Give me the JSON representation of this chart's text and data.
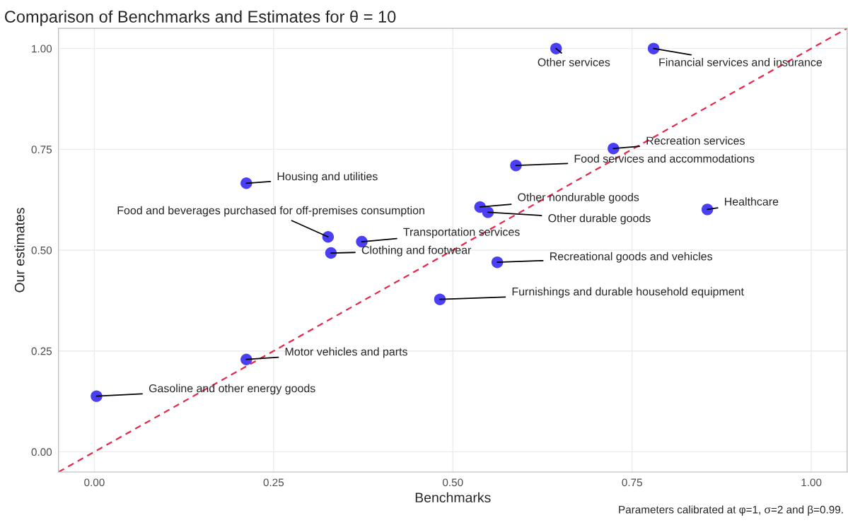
{
  "chart_data": {
    "type": "scatter",
    "title": "Comparison of Benchmarks and Estimates for θ = 10",
    "xlabel": "Benchmarks",
    "ylabel": "Our estimates",
    "series": [
      {
        "color": "#4b3ff5",
        "marker": "circle",
        "x": [
          0.003,
          0.212,
          0.212,
          0.326,
          0.33,
          0.373,
          0.482,
          0.538,
          0.549,
          0.562,
          0.588,
          0.644,
          0.724,
          0.78,
          0.855
        ],
        "values": [
          0.138,
          0.229,
          0.666,
          0.533,
          0.493,
          0.521,
          0.378,
          0.607,
          0.594,
          0.47,
          0.71,
          1.0,
          0.752,
          1.0,
          0.601
        ]
      },
      {
        "type": "line",
        "color": "#e8274b",
        "line_style": "dashed",
        "x": [
          -0.05,
          1.05
        ],
        "values": [
          -0.05,
          1.05
        ]
      }
    ],
    "annotations": [
      {
        "text": "Gasoline and other energy goods",
        "x": 0.003,
        "y": 0.138
      },
      {
        "text": "Motor vehicles and parts",
        "x": 0.212,
        "y": 0.229
      },
      {
        "text": "Housing and utilities",
        "x": 0.212,
        "y": 0.666
      },
      {
        "text": "Food and beverages purchased for off-premises consumption",
        "x": 0.326,
        "y": 0.533
      },
      {
        "text": "Clothing and footwear",
        "x": 0.33,
        "y": 0.493
      },
      {
        "text": "Transportation services",
        "x": 0.373,
        "y": 0.521
      },
      {
        "text": "Furnishings and durable household equipment",
        "x": 0.482,
        "y": 0.378
      },
      {
        "text": "Other nondurable goods",
        "x": 0.538,
        "y": 0.607
      },
      {
        "text": "Other durable goods",
        "x": 0.549,
        "y": 0.594
      },
      {
        "text": "Recreational goods and vehicles",
        "x": 0.562,
        "y": 0.47
      },
      {
        "text": "Food services and accommodations",
        "x": 0.588,
        "y": 0.71
      },
      {
        "text": "Other services",
        "x": 0.644,
        "y": 1.0
      },
      {
        "text": "Recreation services",
        "x": 0.724,
        "y": 0.752
      },
      {
        "text": "Financial services and insurance",
        "x": 0.78,
        "y": 1.0
      },
      {
        "text": "Healthcare",
        "x": 0.855,
        "y": 0.601
      },
      "Parameters calibrated at φ=1, σ=2 and β=0.99."
    ],
    "xlim": [
      -0.05,
      1.05
    ],
    "ylim": [
      -0.05,
      1.05
    ],
    "xticks": [
      {
        "value": 0,
        "label": "0.00"
      },
      {
        "value": 0.25,
        "label": "0.25"
      },
      {
        "value": 0.5,
        "label": "0.50"
      },
      {
        "value": 0.75,
        "label": "0.75"
      },
      {
        "value": 1,
        "label": "1.00"
      }
    ],
    "yticks": [
      {
        "value": 0,
        "label": "0.00"
      },
      {
        "value": 0.25,
        "label": "0.25"
      },
      {
        "value": 0.5,
        "label": "0.50"
      },
      {
        "value": 0.75,
        "label": "0.75"
      },
      {
        "value": 1,
        "label": "1.00"
      }
    ],
    "grid": true
  }
}
